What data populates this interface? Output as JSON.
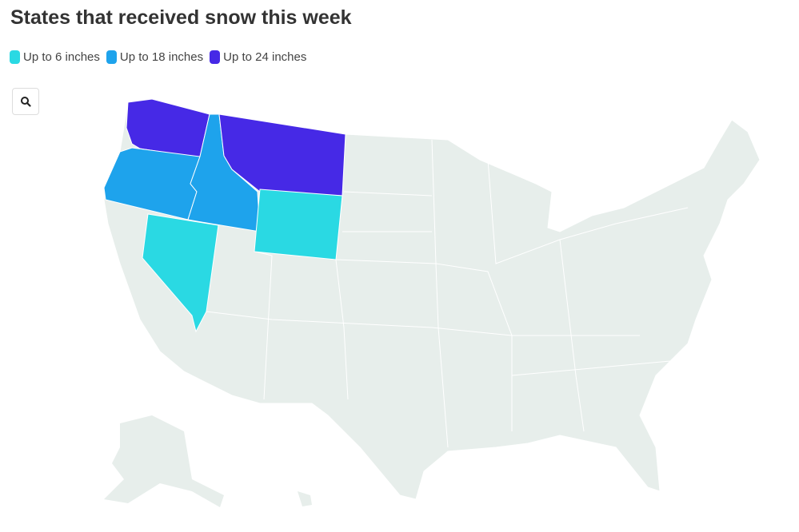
{
  "title": "States that received snow this week",
  "legend": [
    {
      "label": "Up to 6 inches",
      "color": "#2ad9e3"
    },
    {
      "label": "Up to 18 inches",
      "color": "#1ea3ec"
    },
    {
      "label": "Up to 24 inches",
      "color": "#4629e6"
    }
  ],
  "zoom_button": {
    "icon": "search-icon"
  },
  "map": {
    "base_color": "#e7eeeb",
    "states": [
      {
        "name": "Washington",
        "category": "Up to 24 inches"
      },
      {
        "name": "Montana",
        "category": "Up to 24 inches"
      },
      {
        "name": "Oregon",
        "category": "Up to 18 inches"
      },
      {
        "name": "Idaho",
        "category": "Up to 18 inches"
      },
      {
        "name": "Wyoming",
        "category": "Up to 6 inches"
      },
      {
        "name": "Nevada",
        "category": "Up to 6 inches"
      }
    ]
  }
}
